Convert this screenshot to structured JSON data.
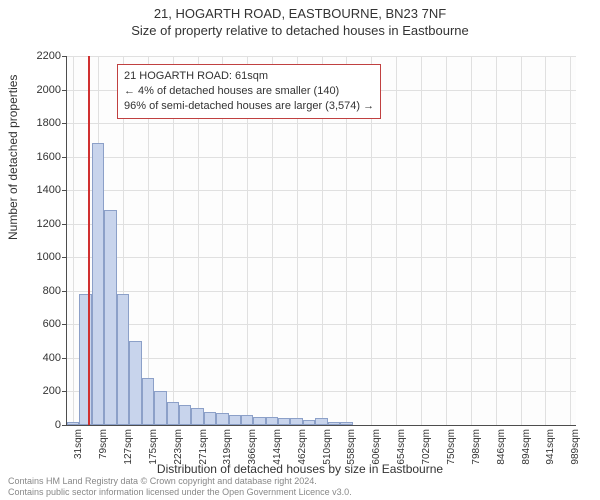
{
  "titles": {
    "main": "21, HOGARTH ROAD, EASTBOURNE, BN23 7NF",
    "sub": "Size of property relative to detached houses in Eastbourne"
  },
  "axes": {
    "ylabel": "Number of detached properties",
    "xlabel": "Distribution of detached houses by size in Eastbourne",
    "ylim": [
      0,
      2200
    ],
    "ytick_step": 200,
    "yticks": [
      0,
      200,
      400,
      600,
      800,
      1000,
      1200,
      1400,
      1600,
      1800,
      2000,
      2200
    ],
    "xtick_labels": [
      "31sqm",
      "79sqm",
      "127sqm",
      "175sqm",
      "223sqm",
      "271sqm",
      "319sqm",
      "366sqm",
      "414sqm",
      "462sqm",
      "510sqm",
      "558sqm",
      "606sqm",
      "654sqm",
      "702sqm",
      "750sqm",
      "798sqm",
      "846sqm",
      "894sqm",
      "941sqm",
      "989sqm"
    ],
    "label_fontsize": 12,
    "tick_fontsize": 11
  },
  "chart": {
    "type": "histogram",
    "bar_fill": "#c8d4ec",
    "bar_border": "#8ca0c8",
    "background_color": "#fdfdfd",
    "grid_color": "#e0e0e0",
    "axis_color": "#4d4d4d",
    "reference_line": {
      "value_sqm": 61,
      "color": "#d03030",
      "width": 2
    },
    "annotation": {
      "border_color": "#c04040",
      "lines": [
        "21 HOGARTH ROAD: 61sqm",
        "← 4% of detached houses are smaller (140)",
        "96% of semi-detached houses are larger (3,574) →"
      ]
    },
    "bin_centers_sqm": [
      31,
      55,
      79,
      103,
      127,
      151,
      175,
      199,
      223,
      247,
      271,
      295,
      319,
      343,
      366,
      390,
      414,
      438,
      462,
      486,
      510,
      534,
      558,
      582,
      606,
      630,
      654,
      678,
      702,
      726,
      750,
      774,
      798,
      822,
      846,
      870,
      894,
      918,
      941,
      965,
      989
    ],
    "bin_width_sqm": 24,
    "values": [
      20,
      780,
      1680,
      1280,
      780,
      500,
      280,
      200,
      140,
      120,
      100,
      80,
      70,
      60,
      60,
      50,
      50,
      40,
      40,
      30,
      40,
      20,
      20,
      0,
      0,
      0,
      0,
      0,
      0,
      0,
      0,
      0,
      0,
      0,
      0,
      0,
      0,
      0,
      0,
      0,
      0
    ]
  },
  "credits": {
    "line1": "Contains HM Land Registry data © Crown copyright and database right 2024.",
    "line2": "Contains public sector information licensed under the Open Government Licence v3.0."
  }
}
